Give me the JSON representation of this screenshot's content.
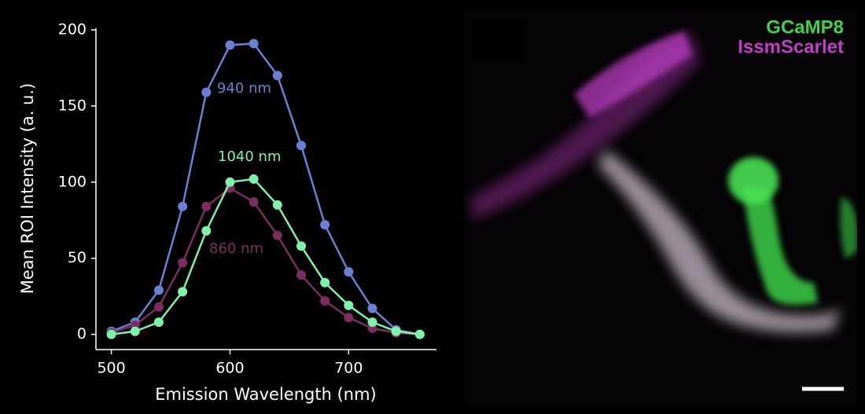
{
  "chart_data": {
    "type": "line",
    "xlabel": "Emission Wavelength (nm)",
    "ylabel": "Mean ROI Intensity (a. u.)",
    "x": [
      500,
      520,
      540,
      560,
      580,
      600,
      620,
      640,
      660,
      680,
      700,
      720,
      740,
      760
    ],
    "series": [
      {
        "name": "940 nm",
        "color": "#6b80d2",
        "values": [
          2,
          8,
          29,
          84,
          159,
          190,
          191,
          170,
          124,
          72,
          41,
          17,
          3,
          0
        ]
      },
      {
        "name": "860 nm",
        "color": "#7a2d5e",
        "values": [
          1,
          6,
          18,
          47,
          84,
          96,
          87,
          65,
          39,
          22,
          11,
          4,
          1,
          0
        ]
      },
      {
        "name": "1040 nm",
        "color": "#80f0aa",
        "values": [
          0,
          2,
          8,
          28,
          68,
          100,
          102,
          85,
          58,
          34,
          19,
          8,
          2,
          0
        ]
      }
    ],
    "xlim": [
      487,
      774
    ],
    "ylim": [
      -10,
      200
    ],
    "xticks": [
      500,
      600,
      700
    ],
    "yticks": [
      0,
      50,
      100,
      150,
      200
    ],
    "image_labels": [
      {
        "text": "GCaMP8",
        "color": "#3ed44a"
      },
      {
        "text": "IssmScarlet",
        "color": "#c23ec4"
      }
    ]
  }
}
